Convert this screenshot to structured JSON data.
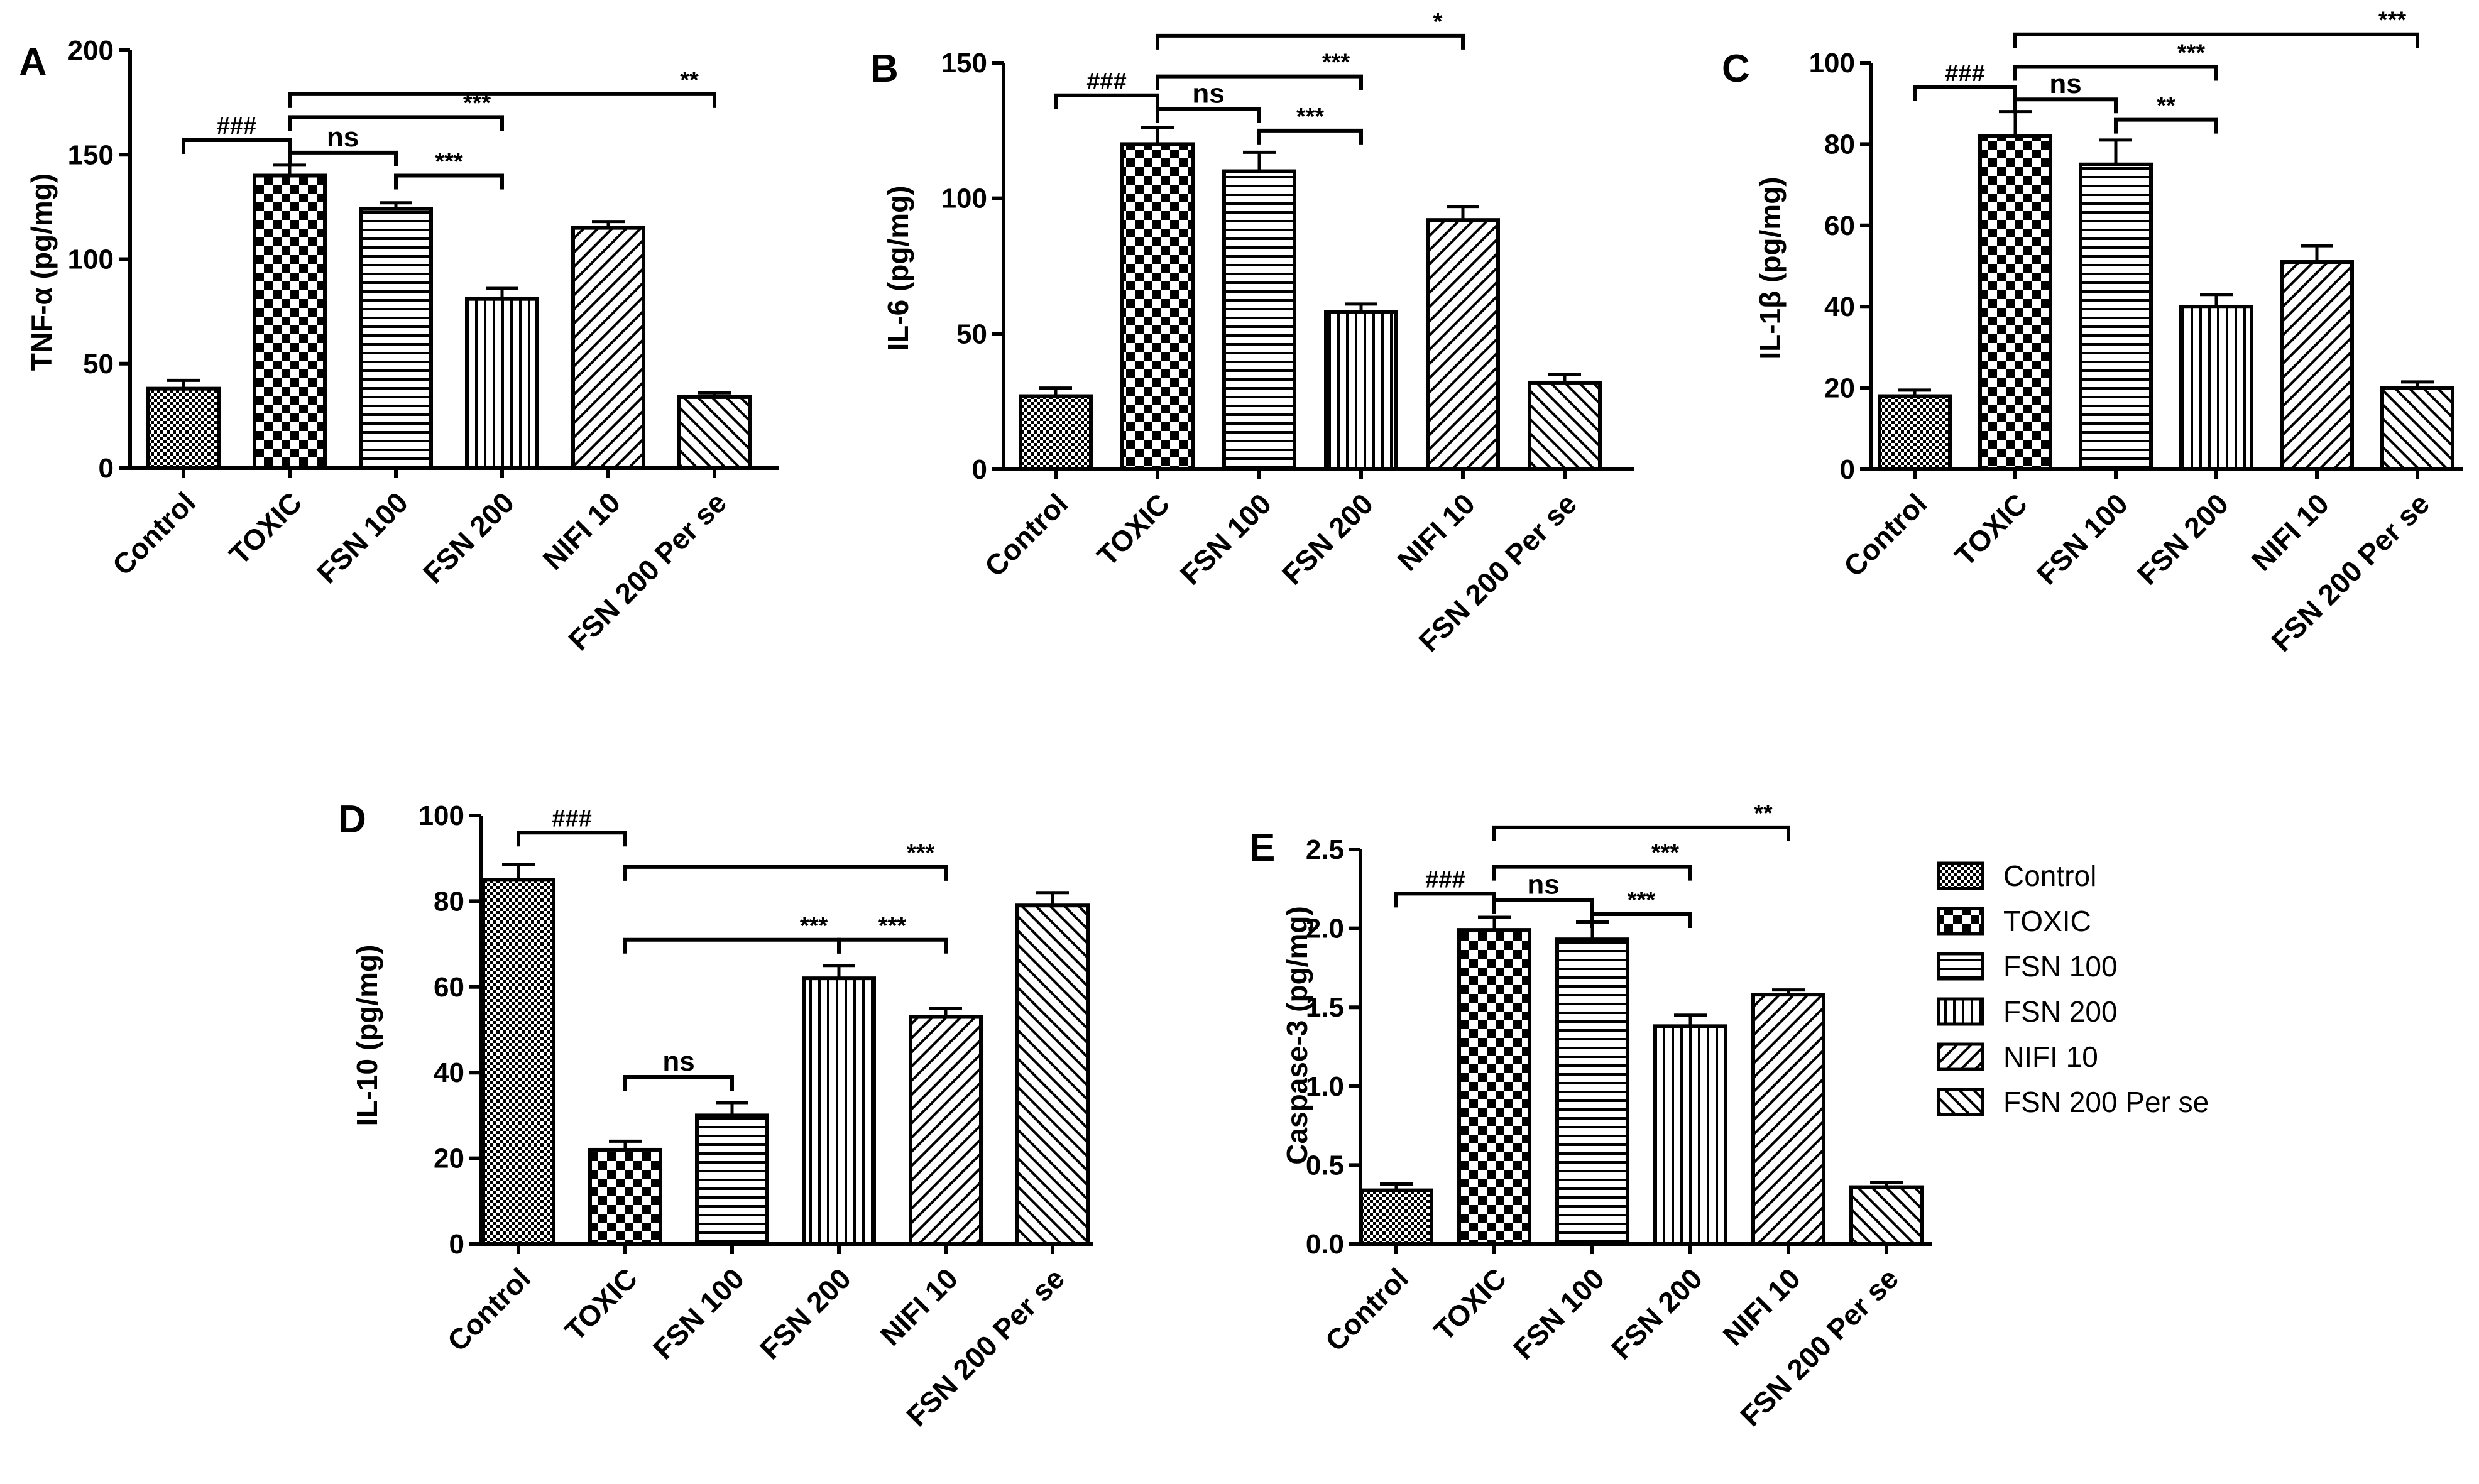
{
  "colors": {
    "ink": "#000000",
    "background": "#ffffff"
  },
  "legend": {
    "entries": [
      {
        "label": "Control",
        "pattern": "pat-control"
      },
      {
        "label": "TOXIC",
        "pattern": "pat-toxic"
      },
      {
        "label": "FSN 100",
        "pattern": "pat-fsn100"
      },
      {
        "label": "FSN 200",
        "pattern": "pat-fsn200"
      },
      {
        "label": "NIFI 10",
        "pattern": "pat-nifi10"
      },
      {
        "label": "FSN 200 Per se",
        "pattern": "pat-perse"
      }
    ]
  },
  "chart_data": [
    {
      "panel": "A",
      "type": "bar",
      "ylabel": "TNF-α (pg/mg)",
      "ylim": [
        0,
        200
      ],
      "yticks": [
        0,
        50,
        100,
        150,
        200
      ],
      "categories": [
        "Control",
        "TOXIC",
        "FSN 100",
        "FSN 200",
        "NIFI 10",
        "FSN 200 Per se"
      ],
      "values": [
        38,
        140,
        124,
        81,
        115,
        34
      ],
      "errors": [
        4,
        5,
        3,
        5,
        3,
        2
      ],
      "annotations": [
        {
          "from": 0,
          "to": 1,
          "label": "###",
          "y": 157
        },
        {
          "from": 1,
          "to": 2,
          "label": "ns",
          "y": 151
        },
        {
          "from": 1,
          "to": 3,
          "label": "***",
          "y": 168
        },
        {
          "from": 2,
          "to": 3,
          "label": "***",
          "y": 140
        },
        {
          "from": 1,
          "to": 5,
          "label": "**",
          "y": 179
        }
      ]
    },
    {
      "panel": "B",
      "type": "bar",
      "ylabel": "IL-6 (pg/mg)",
      "ylim": [
        0,
        150
      ],
      "yticks": [
        0,
        50,
        100,
        150
      ],
      "categories": [
        "Control",
        "TOXIC",
        "FSN 100",
        "FSN 200",
        "NIFI 10",
        "FSN 200 Per se"
      ],
      "values": [
        27,
        120,
        110,
        58,
        92,
        32
      ],
      "errors": [
        3,
        6,
        7,
        3,
        5,
        3
      ],
      "annotations": [
        {
          "from": 0,
          "to": 1,
          "label": "###",
          "y": 138
        },
        {
          "from": 1,
          "to": 2,
          "label": "ns",
          "y": 133
        },
        {
          "from": 1,
          "to": 3,
          "label": "***",
          "y": 145
        },
        {
          "from": 2,
          "to": 3,
          "label": "***",
          "y": 125
        },
        {
          "from": 1,
          "to": 4,
          "label": "*",
          "y": 160
        }
      ]
    },
    {
      "panel": "C",
      "type": "bar",
      "ylabel": "IL-1β (pg/mg)",
      "ylim": [
        0,
        100
      ],
      "yticks": [
        0,
        20,
        40,
        60,
        80,
        100
      ],
      "categories": [
        "Control",
        "TOXIC",
        "FSN 100",
        "FSN 200",
        "NIFI 10",
        "FSN 200 Per se"
      ],
      "values": [
        18,
        82,
        75,
        40,
        51,
        20
      ],
      "errors": [
        1.5,
        6,
        6,
        3,
        4,
        1.5
      ],
      "annotations": [
        {
          "from": 0,
          "to": 1,
          "label": "###",
          "y": 94
        },
        {
          "from": 1,
          "to": 2,
          "label": "ns",
          "y": 91
        },
        {
          "from": 1,
          "to": 3,
          "label": "***",
          "y": 99
        },
        {
          "from": 2,
          "to": 3,
          "label": "**",
          "y": 86
        },
        {
          "from": 1,
          "to": 5,
          "label": "***",
          "y": 107
        }
      ]
    },
    {
      "panel": "D",
      "type": "bar",
      "ylabel": "IL-10 (pg/mg)",
      "ylim": [
        0,
        100
      ],
      "yticks": [
        0,
        20,
        40,
        60,
        80,
        100
      ],
      "categories": [
        "Control",
        "TOXIC",
        "FSN 100",
        "FSN 200",
        "NIFI 10",
        "FSN 200 Per se"
      ],
      "values": [
        85,
        22,
        30,
        62,
        53,
        79
      ],
      "errors": [
        3.5,
        2,
        3,
        3,
        2,
        3
      ],
      "annotations": [
        {
          "from": 0,
          "to": 1,
          "label": "###",
          "y": 96
        },
        {
          "from": 1,
          "to": 4,
          "label": "***",
          "y": 88
        },
        {
          "from": 1,
          "to": 3,
          "label": "***",
          "y": 71
        },
        {
          "from": 3,
          "to": 4,
          "label": "***",
          "y": 71
        },
        {
          "from": 1,
          "to": 2,
          "label": "ns",
          "y": 39
        }
      ]
    },
    {
      "panel": "E",
      "type": "bar",
      "ylabel": "Caspase-3 (pg/mg)",
      "ylim": [
        0,
        2.5
      ],
      "yticks": [
        "0.0",
        "0.5",
        "1.0",
        "1.5",
        "2.0",
        "2.5"
      ],
      "categories": [
        "Control",
        "TOXIC",
        "FSN 100",
        "FSN 200",
        "NIFI 10",
        "FSN 200 Per se"
      ],
      "values": [
        0.34,
        1.99,
        1.93,
        1.38,
        1.58,
        0.36
      ],
      "errors": [
        0.04,
        0.08,
        0.11,
        0.07,
        0.03,
        0.03
      ],
      "annotations": [
        {
          "from": 0,
          "to": 1,
          "label": "###",
          "y": 2.22
        },
        {
          "from": 1,
          "to": 2,
          "label": "ns",
          "y": 2.18
        },
        {
          "from": 1,
          "to": 3,
          "label": "***",
          "y": 2.39
        },
        {
          "from": 2,
          "to": 3,
          "label": "***",
          "y": 2.09
        },
        {
          "from": 1,
          "to": 4,
          "label": "**",
          "y": 2.64
        }
      ]
    }
  ]
}
